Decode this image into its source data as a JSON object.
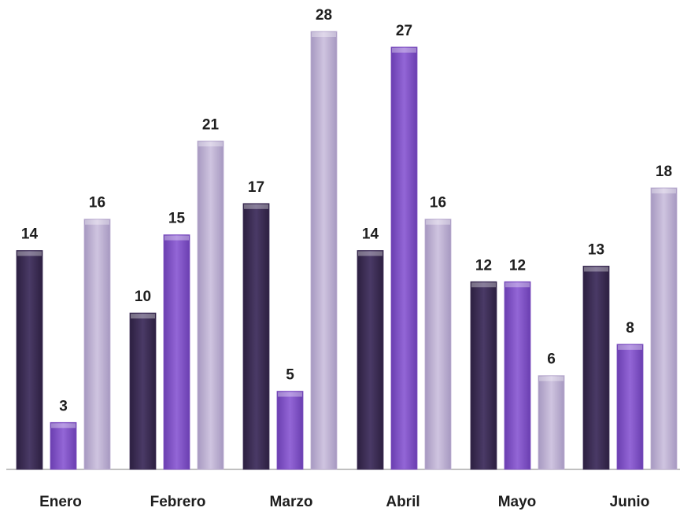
{
  "chart_data": {
    "type": "bar",
    "title": "",
    "xlabel": "",
    "ylabel": "",
    "categories": [
      "Enero",
      "Febrero",
      "Marzo",
      "Abril",
      "Mayo",
      "Junio"
    ],
    "series": [
      {
        "values": [
          14,
          10,
          17,
          14,
          12,
          13
        ],
        "color": "#3f2f58"
      },
      {
        "values": [
          3,
          15,
          5,
          27,
          12,
          8
        ],
        "color": "#7e4fc0"
      },
      {
        "values": [
          16,
          21,
          28,
          16,
          6,
          18
        ],
        "color": "#bdb0d2"
      }
    ],
    "ylim": [
      0,
      28
    ],
    "grid": false,
    "legend": "none",
    "data_labels": true
  }
}
